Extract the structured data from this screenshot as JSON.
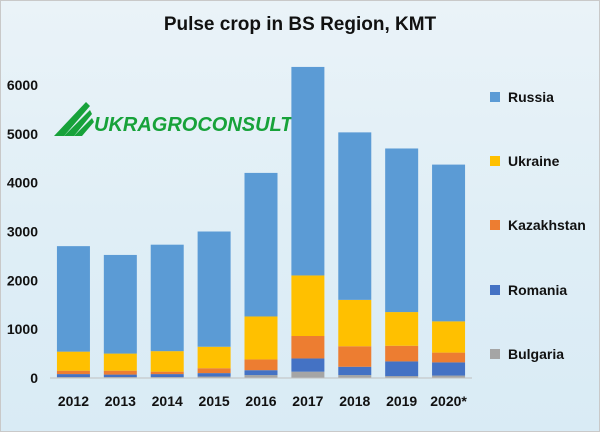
{
  "chart_data": {
    "type": "bar",
    "stacked": true,
    "title": "Pulse crop in BS Region, KMT",
    "categories": [
      "2012",
      "2013",
      "2014",
      "2015",
      "2016",
      "2017",
      "2018",
      "2019",
      "2020*"
    ],
    "ylim": [
      0,
      6000
    ],
    "yticks": [
      0,
      1000,
      2000,
      3000,
      4000,
      5000,
      6000
    ],
    "grid": false,
    "legend_position": "right",
    "series": [
      {
        "name": "Bulgaria",
        "color": "#a5a5a5",
        "values": [
          20,
          20,
          20,
          30,
          60,
          130,
          60,
          40,
          50
        ]
      },
      {
        "name": "Romania",
        "color": "#4472c4",
        "values": [
          60,
          50,
          60,
          70,
          100,
          270,
          170,
          300,
          270
        ]
      },
      {
        "name": "Kazakhstan",
        "color": "#ed7d31",
        "values": [
          70,
          80,
          50,
          100,
          220,
          460,
          420,
          320,
          200
        ]
      },
      {
        "name": "Ukraine",
        "color": "#ffc000",
        "values": [
          390,
          350,
          420,
          440,
          880,
          1240,
          950,
          690,
          640
        ]
      },
      {
        "name": "Russia",
        "color": "#5b9bd5",
        "values": [
          2160,
          2020,
          2180,
          2360,
          2940,
          4270,
          3430,
          3350,
          3210
        ]
      }
    ],
    "legend_order": [
      "Russia",
      "Ukraine",
      "Kazakhstan",
      "Romania",
      "Bulgaria"
    ]
  },
  "logo": {
    "text": "UkrAgroConsult",
    "display": "UKRAGROCONSULT",
    "color": "#17a23a"
  }
}
